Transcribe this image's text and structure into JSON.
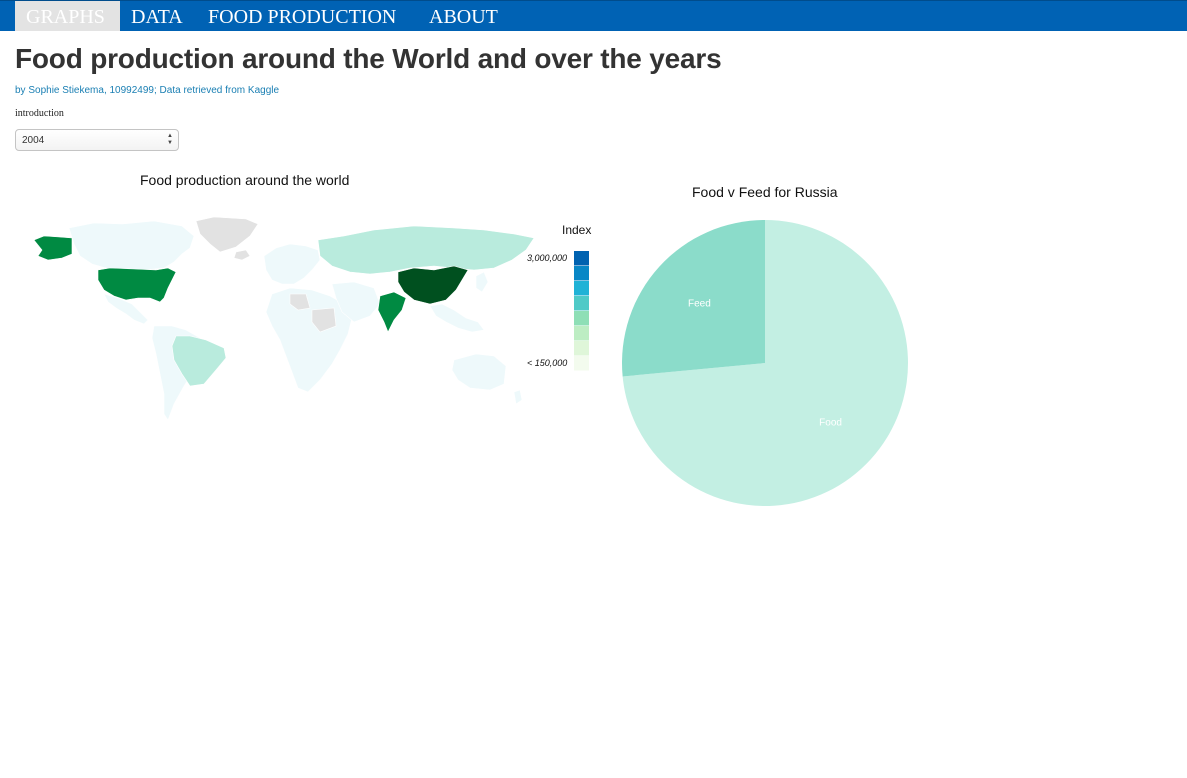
{
  "nav": {
    "items": [
      {
        "label": "GRAPHS",
        "active": true
      },
      {
        "label": "DATA",
        "active": false
      },
      {
        "label": "FOOD PRODUCTION",
        "active": false
      },
      {
        "label": "ABOUT",
        "active": false
      }
    ]
  },
  "header": {
    "title": "Food production around the World and over the years",
    "byline": "by Sophie Stiekema, 10992499; Data retrieved from Kaggle",
    "intro": "introduction"
  },
  "year_select": {
    "value": "2004"
  },
  "map": {
    "title": "Food production around the world",
    "legend": {
      "title": "Index",
      "max_label": "3,000,000",
      "min_label": "< 150,000",
      "colors": [
        "#0062b0",
        "#0887c6",
        "#1fb2d6",
        "#4fcac7",
        "#8edfb6",
        "#bdedc3",
        "#dff6d9",
        "#f3fbee"
      ]
    },
    "colors": {
      "no_data": "#e2e2e2",
      "lowest": "#eef9fb",
      "low": "#b9ebdd",
      "mid": "#008a42",
      "high": "#00501f"
    }
  },
  "chart_data": {
    "type": "pie",
    "title": "Food v Feed for Russia",
    "categories": [
      "Food",
      "Feed"
    ],
    "values": [
      73.5,
      26.5
    ],
    "colors": [
      "#c3efe3",
      "#8bdcca"
    ]
  }
}
